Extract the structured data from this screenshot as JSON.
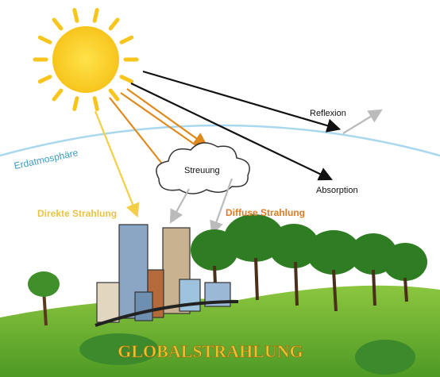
{
  "labels": {
    "reflexion": "Reflexion",
    "atmosphere": "Erdatmosphäre",
    "scattering": "Streuung",
    "absorption": "Absorption",
    "direct": "Direkte Strahlung",
    "diffuse": "Diffuse Strahlung",
    "global": "GLOBALSTRAHLUNG"
  }
}
